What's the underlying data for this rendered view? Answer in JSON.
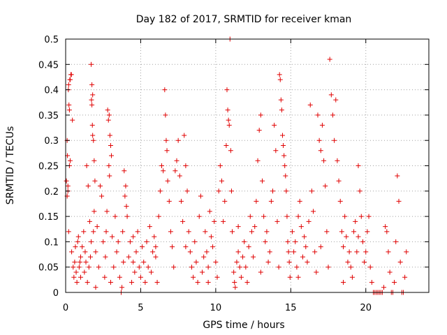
{
  "chart_data": {
    "type": "scatter",
    "title": "Day 182 of 2017, SRMTID for receiver kman",
    "xlabel": "GPS time / hours",
    "ylabel": "SRMTID / TECUs",
    "xlim": [
      0,
      24.2
    ],
    "ylim": [
      0,
      0.5
    ],
    "xticks": [
      0,
      5,
      10,
      15,
      20
    ],
    "xtick_labels": [
      "0",
      "5",
      "10",
      "15",
      "20"
    ],
    "yticks": [
      0,
      0.05,
      0.1,
      0.15,
      0.2,
      0.25,
      0.3,
      0.35,
      0.4,
      0.45,
      0.5
    ],
    "ytick_labels": [
      "0",
      "0.05",
      "0.1",
      "0.15",
      "0.2",
      "0.25",
      "0.3",
      "0.35",
      "0.4",
      "0.45",
      "0.5"
    ],
    "grid": true,
    "marker": "+",
    "color": "#e00000",
    "series": [
      {
        "name": "SRMTID",
        "points": [
          [
            0.05,
            0.22
          ],
          [
            0.1,
            0.3
          ],
          [
            0.12,
            0.27
          ],
          [
            0.15,
            0.2
          ],
          [
            0.18,
            0.4
          ],
          [
            0.2,
            0.41
          ],
          [
            0.22,
            0.37
          ],
          [
            0.25,
            0.36
          ],
          [
            0.28,
            0.42
          ],
          [
            0.3,
            0.42
          ],
          [
            0.35,
            0.43
          ],
          [
            0.38,
            0.43
          ],
          [
            0.25,
            0.25
          ],
          [
            0.3,
            0.26
          ],
          [
            0.1,
            0.19
          ],
          [
            0.15,
            0.21
          ],
          [
            0.45,
            0.34
          ],
          [
            0.2,
            0.12
          ],
          [
            0.4,
            0.08
          ],
          [
            0.5,
            0.05
          ],
          [
            0.6,
            0.06
          ],
          [
            0.7,
            0.04
          ],
          [
            0.8,
            0.1
          ],
          [
            0.9,
            0.05
          ],
          [
            1.0,
            0.07
          ],
          [
            0.55,
            0.03
          ],
          [
            0.65,
            0.09
          ],
          [
            0.75,
            0.02
          ],
          [
            0.85,
            0.11
          ],
          [
            0.95,
            0.06
          ],
          [
            1.1,
            0.09
          ],
          [
            1.2,
            0.12
          ],
          [
            1.3,
            0.08
          ],
          [
            1.4,
            0.25
          ],
          [
            1.5,
            0.21
          ],
          [
            1.6,
            0.14
          ],
          [
            1.7,
            0.45
          ],
          [
            1.75,
            0.41
          ],
          [
            1.8,
            0.39
          ],
          [
            1.72,
            0.38
          ],
          [
            1.75,
            0.37
          ],
          [
            1.78,
            0.33
          ],
          [
            1.8,
            0.31
          ],
          [
            1.85,
            0.3
          ],
          [
            1.9,
            0.26
          ],
          [
            1.95,
            0.22
          ],
          [
            1.25,
            0.04
          ],
          [
            1.35,
            0.06
          ],
          [
            1.45,
            0.02
          ],
          [
            1.55,
            0.05
          ],
          [
            1.65,
            0.07
          ],
          [
            1.7,
            0.1
          ],
          [
            1.85,
            0.12
          ],
          [
            1.9,
            0.16
          ],
          [
            2.0,
            0.08
          ],
          [
            2.1,
            0.13
          ],
          [
            2.2,
            0.05
          ],
          [
            2.3,
            0.21
          ],
          [
            2.4,
            0.19
          ],
          [
            2.5,
            0.1
          ],
          [
            2.6,
            0.03
          ],
          [
            2.7,
            0.12
          ],
          [
            2.8,
            0.36
          ],
          [
            2.85,
            0.34
          ],
          [
            2.9,
            0.35
          ],
          [
            2.95,
            0.31
          ],
          [
            3.0,
            0.29
          ],
          [
            3.05,
            0.27
          ],
          [
            2.88,
            0.25
          ],
          [
            2.92,
            0.23
          ],
          [
            2.75,
            0.16
          ],
          [
            2.65,
            0.07
          ],
          [
            3.1,
            0.11
          ],
          [
            3.2,
            0.05
          ],
          [
            3.3,
            0.15
          ],
          [
            3.4,
            0.08
          ],
          [
            3.5,
            0.1
          ],
          [
            3.6,
            0.03
          ],
          [
            3.7,
            0.0
          ],
          [
            3.8,
            0.12
          ],
          [
            3.9,
            0.24
          ],
          [
            3.95,
            0.19
          ],
          [
            4.0,
            0.21
          ],
          [
            4.05,
            0.17
          ],
          [
            4.1,
            0.15
          ],
          [
            3.75,
            0.01
          ],
          [
            3.85,
            0.06
          ],
          [
            4.2,
            0.07
          ],
          [
            4.3,
            0.1
          ],
          [
            4.4,
            0.02
          ],
          [
            4.5,
            0.06
          ],
          [
            4.6,
            0.04
          ],
          [
            4.7,
            0.08
          ],
          [
            4.8,
            0.12
          ],
          [
            4.9,
            0.05
          ],
          [
            5.0,
            0.03
          ],
          [
            5.1,
            0.09
          ],
          [
            5.2,
            0.06
          ],
          [
            5.3,
            0.02
          ],
          [
            5.4,
            0.1
          ],
          [
            5.5,
            0.05
          ],
          [
            5.6,
            0.13
          ],
          [
            5.7,
            0.04
          ],
          [
            5.8,
            0.08
          ],
          [
            5.9,
            0.11
          ],
          [
            6.0,
            0.07
          ],
          [
            6.1,
            0.02
          ],
          [
            6.2,
            0.15
          ],
          [
            6.3,
            0.2
          ],
          [
            6.4,
            0.25
          ],
          [
            6.5,
            0.24
          ],
          [
            6.6,
            0.4
          ],
          [
            6.65,
            0.35
          ],
          [
            6.7,
            0.3
          ],
          [
            6.75,
            0.28
          ],
          [
            6.8,
            0.22
          ],
          [
            6.9,
            0.18
          ],
          [
            7.0,
            0.12
          ],
          [
            7.1,
            0.09
          ],
          [
            7.2,
            0.05
          ],
          [
            7.3,
            0.24
          ],
          [
            7.4,
            0.26
          ],
          [
            7.5,
            0.3
          ],
          [
            7.6,
            0.23
          ],
          [
            7.7,
            0.18
          ],
          [
            7.8,
            0.14
          ],
          [
            7.9,
            0.31
          ],
          [
            8.0,
            0.25
          ],
          [
            8.1,
            0.2
          ],
          [
            8.2,
            0.12
          ],
          [
            8.3,
            0.08
          ],
          [
            8.4,
            0.05
          ],
          [
            8.5,
            0.03
          ],
          [
            8.6,
            0.1
          ],
          [
            8.7,
            0.06
          ],
          [
            8.8,
            0.02
          ],
          [
            8.9,
            0.15
          ],
          [
            9.0,
            0.19
          ],
          [
            9.1,
            0.04
          ],
          [
            9.2,
            0.07
          ],
          [
            9.3,
            0.12
          ],
          [
            9.4,
            0.08
          ],
          [
            9.5,
            0.05
          ],
          [
            9.6,
            0.16
          ],
          [
            9.7,
            0.11
          ],
          [
            9.8,
            0.09
          ],
          [
            9.9,
            0.14
          ],
          [
            10.0,
            0.06
          ],
          [
            10.1,
            0.03
          ],
          [
            10.2,
            0.2
          ],
          [
            10.3,
            0.25
          ],
          [
            10.4,
            0.22
          ],
          [
            10.5,
            0.14
          ],
          [
            10.6,
            0.18
          ],
          [
            10.7,
            0.29
          ],
          [
            10.75,
            0.4
          ],
          [
            10.8,
            0.36
          ],
          [
            10.85,
            0.34
          ],
          [
            10.9,
            0.33
          ],
          [
            10.95,
            0.5
          ],
          [
            11.0,
            0.28
          ],
          [
            11.05,
            0.2
          ],
          [
            11.1,
            0.12
          ],
          [
            11.2,
            0.04
          ],
          [
            11.25,
            0.02
          ],
          [
            11.3,
            0.01
          ],
          [
            11.4,
            0.06
          ],
          [
            11.5,
            0.08
          ],
          [
            11.6,
            0.05
          ],
          [
            11.7,
            0.03
          ],
          [
            11.8,
            0.07
          ],
          [
            11.9,
            0.1
          ],
          [
            12.0,
            0.05
          ],
          [
            12.1,
            0.02
          ],
          [
            12.2,
            0.09
          ],
          [
            12.3,
            0.15
          ],
          [
            12.4,
            0.12
          ],
          [
            12.5,
            0.07
          ],
          [
            12.6,
            0.13
          ],
          [
            12.7,
            0.18
          ],
          [
            12.8,
            0.26
          ],
          [
            12.9,
            0.32
          ],
          [
            13.0,
            0.35
          ],
          [
            13.1,
            0.22
          ],
          [
            13.2,
            0.15
          ],
          [
            13.3,
            0.1
          ],
          [
            13.4,
            0.12
          ],
          [
            13.5,
            0.06
          ],
          [
            13.6,
            0.08
          ],
          [
            13.7,
            0.18
          ],
          [
            13.8,
            0.2
          ],
          [
            13.9,
            0.33
          ],
          [
            14.0,
            0.28
          ],
          [
            14.1,
            0.14
          ],
          [
            14.2,
            0.05
          ],
          [
            14.25,
            0.43
          ],
          [
            14.3,
            0.42
          ],
          [
            14.35,
            0.38
          ],
          [
            14.4,
            0.36
          ],
          [
            14.45,
            0.31
          ],
          [
            14.5,
            0.29
          ],
          [
            14.55,
            0.27
          ],
          [
            14.6,
            0.25
          ],
          [
            14.65,
            0.23
          ],
          [
            14.7,
            0.2
          ],
          [
            14.75,
            0.15
          ],
          [
            14.8,
            0.1
          ],
          [
            14.85,
            0.08
          ],
          [
            14.9,
            0.06
          ],
          [
            14.95,
            0.03
          ],
          [
            15.1,
            0.12
          ],
          [
            15.2,
            0.08
          ],
          [
            15.3,
            0.1
          ],
          [
            15.4,
            0.05
          ],
          [
            15.5,
            0.15
          ],
          [
            15.6,
            0.18
          ],
          [
            15.7,
            0.13
          ],
          [
            15.8,
            0.07
          ],
          [
            15.9,
            0.11
          ],
          [
            16.0,
            0.09
          ],
          [
            16.1,
            0.06
          ],
          [
            16.2,
            0.14
          ],
          [
            16.3,
            0.37
          ],
          [
            16.4,
            0.2
          ],
          [
            16.5,
            0.16
          ],
          [
            16.6,
            0.08
          ],
          [
            16.7,
            0.04
          ],
          [
            16.8,
            0.35
          ],
          [
            16.9,
            0.3
          ],
          [
            17.0,
            0.28
          ],
          [
            17.1,
            0.33
          ],
          [
            17.2,
            0.26
          ],
          [
            17.3,
            0.21
          ],
          [
            17.4,
            0.12
          ],
          [
            17.5,
            0.05
          ],
          [
            17.6,
            0.46
          ],
          [
            17.7,
            0.39
          ],
          [
            17.8,
            0.35
          ],
          [
            17.9,
            0.3
          ],
          [
            18.0,
            0.38
          ],
          [
            18.1,
            0.26
          ],
          [
            18.2,
            0.22
          ],
          [
            18.3,
            0.18
          ],
          [
            18.4,
            0.12
          ],
          [
            18.5,
            0.09
          ],
          [
            18.6,
            0.15
          ],
          [
            18.7,
            0.11
          ],
          [
            18.8,
            0.06
          ],
          [
            18.9,
            0.08
          ],
          [
            19.0,
            0.05
          ],
          [
            19.1,
            0.03
          ],
          [
            19.2,
            0.12
          ],
          [
            19.3,
            0.14
          ],
          [
            19.4,
            0.08
          ],
          [
            19.5,
            0.25
          ],
          [
            19.6,
            0.2
          ],
          [
            19.7,
            0.15
          ],
          [
            19.8,
            0.1
          ],
          [
            19.9,
            0.06
          ],
          [
            20.0,
            0.08
          ],
          [
            20.1,
            0.12
          ],
          [
            20.2,
            0.15
          ],
          [
            20.3,
            0.05
          ],
          [
            20.4,
            0.02
          ],
          [
            20.5,
            0.0
          ],
          [
            20.6,
            0.0
          ],
          [
            20.7,
            0.0
          ],
          [
            20.8,
            0.0
          ],
          [
            20.9,
            0.0
          ],
          [
            21.0,
            0.0
          ],
          [
            21.1,
            0.0
          ],
          [
            21.2,
            0.01
          ],
          [
            21.3,
            0.13
          ],
          [
            21.4,
            0.12
          ],
          [
            21.5,
            0.08
          ],
          [
            21.6,
            0.04
          ],
          [
            21.7,
            0.0
          ],
          [
            21.8,
            0.0
          ],
          [
            21.9,
            0.02
          ],
          [
            22.0,
            0.1
          ],
          [
            22.1,
            0.23
          ],
          [
            22.2,
            0.18
          ],
          [
            22.3,
            0.06
          ],
          [
            22.4,
            0.0
          ],
          [
            22.5,
            0.0
          ],
          [
            22.6,
            0.03
          ],
          [
            22.7,
            0.08
          ],
          [
            1.0,
            0.03
          ],
          [
            2.0,
            0.01
          ],
          [
            3.0,
            0.02
          ],
          [
            4.5,
            0.11
          ],
          [
            6.0,
            0.09
          ],
          [
            8.0,
            0.09
          ],
          [
            9.5,
            0.02
          ],
          [
            11.5,
            0.13
          ],
          [
            13.0,
            0.04
          ],
          [
            15.5,
            0.03
          ],
          [
            17.0,
            0.09
          ],
          [
            18.5,
            0.02
          ],
          [
            19.5,
            0.11
          ]
        ]
      }
    ]
  }
}
